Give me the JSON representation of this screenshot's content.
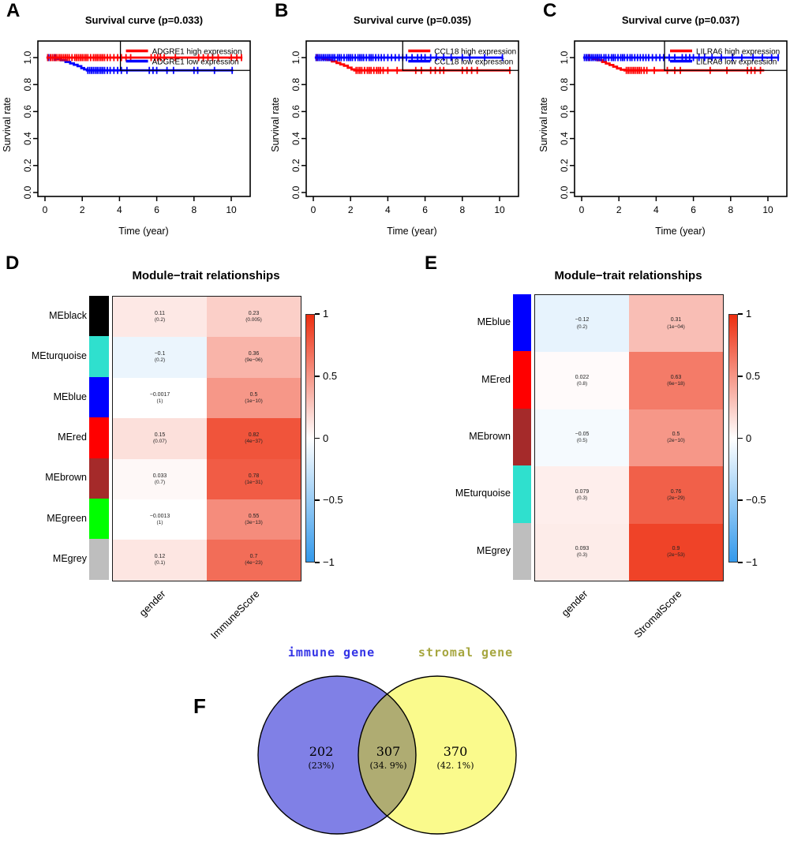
{
  "chart_data": {
    "survival_curves": [
      {
        "panel": "A",
        "type": "line",
        "title": "Survival curve (p=0.033)",
        "x_label": "Time (year)",
        "y_label": "Survival rate",
        "x_ticks": [
          0,
          2,
          4,
          6,
          8,
          10
        ],
        "y_tick_labels": [
          "0.0",
          "0.2",
          "0.4",
          "0.6",
          "0.8",
          "1.0"
        ],
        "xlim": [
          0,
          11
        ],
        "ylim": [
          0,
          1.05
        ],
        "legend_box_start_year": 4.05,
        "legend_box_bottom": 0.905,
        "legend": [
          {
            "label": "ADGRE1 high expression",
            "color": "#FF0000"
          },
          {
            "label": "ADGRE1 low expression",
            "color": "#0000FF"
          }
        ],
        "series": [
          {
            "name": "ADGRE1 low expression",
            "color": "#0000FF",
            "steps": [
              [
                0.08,
                1
              ],
              [
                0.6,
                0.99
              ],
              [
                0.85,
                0.98
              ],
              [
                1.1,
                0.968
              ],
              [
                1.35,
                0.957
              ],
              [
                1.55,
                0.947
              ],
              [
                1.75,
                0.936
              ],
              [
                1.95,
                0.922
              ],
              [
                2.1,
                0.912
              ],
              [
                2.25,
                0.905
              ],
              [
                10.1,
                0.905
              ]
            ],
            "censor_times": [
              0.15,
              0.2,
              0.3,
              0.4,
              0.5,
              0.55,
              2.3,
              2.4,
              2.5,
              2.6,
              2.7,
              2.8,
              2.9,
              3.0,
              3.1,
              3.2,
              3.35,
              3.5,
              3.7,
              3.9,
              4.1,
              4.4,
              5.6,
              5.8,
              6.0,
              6.55,
              6.9,
              8.0,
              8.2,
              9.1,
              10.05
            ]
          },
          {
            "name": "ADGRE1 high expression",
            "color": "#FF0000",
            "steps": [
              [
                0.08,
                1
              ],
              [
                10.6,
                1
              ]
            ],
            "censor_times": [
              0.15,
              0.3,
              0.4,
              0.5,
              0.6,
              0.7,
              0.8,
              0.9,
              1.0,
              1.1,
              1.2,
              1.3,
              1.45,
              1.6,
              1.7,
              1.8,
              1.9,
              2.0,
              2.1,
              2.2,
              2.3,
              2.45,
              2.6,
              2.7,
              2.8,
              2.9,
              3.0,
              3.1,
              3.2,
              3.35,
              3.5,
              3.7,
              3.9,
              4.1,
              4.35,
              4.6,
              5.7,
              5.9,
              6.05,
              6.2,
              6.4,
              7.0,
              8.25,
              8.5,
              8.75,
              9.0,
              9.3,
              10.0,
              10.3,
              10.55
            ]
          }
        ]
      },
      {
        "panel": "B",
        "type": "line",
        "title": "Survival curve (p=0.035)",
        "x_label": "Time (year)",
        "y_label": "Survival rate",
        "x_ticks": [
          0,
          2,
          4,
          6,
          8,
          10
        ],
        "y_tick_labels": [
          "0.0",
          "0.2",
          "0.4",
          "0.6",
          "0.8",
          "1.0"
        ],
        "xlim": [
          0,
          11
        ],
        "ylim": [
          0,
          1.05
        ],
        "legend_box_start_year": 4.8,
        "legend_box_bottom": 0.905,
        "legend": [
          {
            "label": "CCL18 high expression",
            "color": "#FF0000"
          },
          {
            "label": "CCL18 low expression",
            "color": "#0000FF"
          }
        ],
        "series": [
          {
            "name": "CCL18 high expression",
            "color": "#FF0000",
            "steps": [
              [
                0.08,
                1
              ],
              [
                0.5,
                0.99
              ],
              [
                0.75,
                0.982
              ],
              [
                1.0,
                0.972
              ],
              [
                1.25,
                0.96
              ],
              [
                1.45,
                0.95
              ],
              [
                1.65,
                0.94
              ],
              [
                1.85,
                0.925
              ],
              [
                2.05,
                0.912
              ],
              [
                2.2,
                0.905
              ],
              [
                10.6,
                0.905
              ]
            ],
            "censor_times": [
              0.2,
              0.35,
              2.3,
              2.4,
              2.5,
              2.6,
              2.75,
              2.9,
              3.0,
              3.1,
              3.25,
              3.4,
              3.5,
              3.6,
              3.75,
              4.0,
              4.5,
              5.5,
              5.8,
              6.3,
              6.55,
              6.8,
              7.0,
              8.0,
              8.25,
              8.5,
              8.8,
              10.55
            ]
          },
          {
            "name": "CCL18 low expression",
            "color": "#0000FF",
            "steps": [
              [
                0.08,
                1
              ],
              [
                10.2,
                1
              ]
            ],
            "censor_times": [
              0.15,
              0.25,
              0.35,
              0.45,
              0.55,
              0.65,
              0.75,
              0.85,
              0.95,
              1.05,
              1.15,
              1.3,
              1.4,
              1.5,
              1.65,
              1.8,
              1.9,
              2.0,
              2.1,
              2.25,
              2.4,
              2.5,
              2.6,
              2.7,
              2.85,
              3.0,
              3.1,
              3.2,
              3.35,
              3.5,
              3.65,
              3.8,
              4.0,
              4.2,
              4.4,
              4.6,
              4.8,
              5.0,
              5.3,
              5.6,
              5.8,
              6.0,
              6.3,
              6.6,
              7.0,
              7.4,
              8.0,
              8.4,
              9.2,
              10.15
            ]
          }
        ]
      },
      {
        "panel": "C",
        "type": "line",
        "title": "Survival curve (p=0.037)",
        "x_label": "Time (year)",
        "y_label": "Survival rate",
        "x_ticks": [
          0,
          2,
          4,
          6,
          8,
          10
        ],
        "y_tick_labels": [
          "0.0",
          "0.2",
          "0.4",
          "0.6",
          "0.8",
          "1.0"
        ],
        "xlim": [
          0,
          11
        ],
        "ylim": [
          0,
          1.05
        ],
        "legend_box_start_year": 4.45,
        "legend_box_bottom": 0.905,
        "legend": [
          {
            "label": "LILRA6 high expression",
            "color": "#FF0000"
          },
          {
            "label": "LILRA6 low expression",
            "color": "#0000FF"
          }
        ],
        "series": [
          {
            "name": "LILRA6 high expression",
            "color": "#FF0000",
            "steps": [
              [
                0.08,
                1
              ],
              [
                0.6,
                0.99
              ],
              [
                0.85,
                0.98
              ],
              [
                1.1,
                0.968
              ],
              [
                1.3,
                0.956
              ],
              [
                1.5,
                0.945
              ],
              [
                1.7,
                0.933
              ],
              [
                1.9,
                0.92
              ],
              [
                2.1,
                0.91
              ],
              [
                2.3,
                0.905
              ],
              [
                9.8,
                0.905
              ]
            ],
            "censor_times": [
              0.25,
              0.4,
              2.4,
              2.5,
              2.6,
              2.7,
              2.8,
              2.9,
              3.0,
              3.1,
              3.2,
              3.35,
              3.5,
              3.9,
              4.6,
              5.0,
              5.3,
              6.9,
              7.8,
              8.9,
              9.1,
              9.3,
              9.6
            ]
          },
          {
            "name": "LILRA6 low expression",
            "color": "#0000FF",
            "steps": [
              [
                0.08,
                1
              ],
              [
                10.6,
                1
              ]
            ],
            "censor_times": [
              0.15,
              0.25,
              0.35,
              0.45,
              0.55,
              0.65,
              0.75,
              0.85,
              0.95,
              1.05,
              1.2,
              1.3,
              1.45,
              1.6,
              1.7,
              1.8,
              1.95,
              2.1,
              2.2,
              2.3,
              2.45,
              2.6,
              2.7,
              2.85,
              3.0,
              3.15,
              3.3,
              3.45,
              3.6,
              3.8,
              4.0,
              4.2,
              4.4,
              4.7,
              5.0,
              5.4,
              5.6,
              5.8,
              6.0,
              6.3,
              6.6,
              7.0,
              7.5,
              8.1,
              8.6,
              9.2,
              9.7,
              10.2,
              10.55
            ]
          }
        ]
      }
    ],
    "heatmaps": [
      {
        "panel": "D",
        "type": "heatmap",
        "title": "Module−trait relationships",
        "columns": [
          "gender",
          "ImmuneScore"
        ],
        "colorbar_ticks": [
          "1",
          "0.5",
          "0",
          "−0.5",
          "−1"
        ],
        "colorbar_range": [
          1,
          -1
        ],
        "positive_color": "#ED2E10",
        "negative_color": "#3399EB",
        "rows": [
          {
            "module": "MEblack",
            "color": "#000000",
            "cells": [
              {
                "value": 0.11,
                "label": "0.11",
                "p": "(0.2)"
              },
              {
                "value": 0.23,
                "label": "0.23",
                "p": "(0.005)"
              }
            ]
          },
          {
            "module": "MEturquoise",
            "color": "#2FE0CE",
            "cells": [
              {
                "value": -0.1,
                "label": "−0.1",
                "p": "(0.2)"
              },
              {
                "value": 0.36,
                "label": "0.36",
                "p": "(9e−06)"
              }
            ]
          },
          {
            "module": "MEblue",
            "color": "#0000FF",
            "cells": [
              {
                "value": -0.0017,
                "label": "−0.0017",
                "p": "(1)"
              },
              {
                "value": 0.5,
                "label": "0.5",
                "p": "(1e−10)"
              }
            ]
          },
          {
            "module": "MEred",
            "color": "#FF0000",
            "cells": [
              {
                "value": 0.15,
                "label": "0.15",
                "p": "(0.07)"
              },
              {
                "value": 0.82,
                "label": "0.82",
                "p": "(4e−37)"
              }
            ]
          },
          {
            "module": "MEbrown",
            "color": "#A52A2A",
            "cells": [
              {
                "value": 0.033,
                "label": "0.033",
                "p": "(0.7)"
              },
              {
                "value": 0.78,
                "label": "0.78",
                "p": "(1e−31)"
              }
            ]
          },
          {
            "module": "MEgreen",
            "color": "#00FF00",
            "cells": [
              {
                "value": -0.0013,
                "label": "−0.0013",
                "p": "(1)"
              },
              {
                "value": 0.55,
                "label": "0.55",
                "p": "(3e−13)"
              }
            ]
          },
          {
            "module": "MEgrey",
            "color": "#BEBEBE",
            "cells": [
              {
                "value": 0.12,
                "label": "0.12",
                "p": "(0.1)"
              },
              {
                "value": 0.7,
                "label": "0.7",
                "p": "(4e−23)"
              }
            ]
          }
        ]
      },
      {
        "panel": "E",
        "type": "heatmap",
        "title": "Module−trait relationships",
        "columns": [
          "gender",
          "StromalScore"
        ],
        "colorbar_ticks": [
          "1",
          "0.5",
          "0",
          "−0.5",
          "−1"
        ],
        "colorbar_range": [
          1,
          -1
        ],
        "positive_color": "#ED2E10",
        "negative_color": "#3399EB",
        "rows": [
          {
            "module": "MEblue",
            "color": "#0000FF",
            "cells": [
              {
                "value": -0.12,
                "label": "−0.12",
                "p": "(0.2)"
              },
              {
                "value": 0.31,
                "label": "0.31",
                "p": "(1e−04)"
              }
            ]
          },
          {
            "module": "MEred",
            "color": "#FF0000",
            "cells": [
              {
                "value": 0.022,
                "label": "0.022",
                "p": "(0.8)"
              },
              {
                "value": 0.63,
                "label": "0.63",
                "p": "(6e−18)"
              }
            ]
          },
          {
            "module": "MEbrown",
            "color": "#A52A2A",
            "cells": [
              {
                "value": -0.05,
                "label": "−0.05",
                "p": "(0.5)"
              },
              {
                "value": 0.5,
                "label": "0.5",
                "p": "(2e−10)"
              }
            ]
          },
          {
            "module": "MEturquoise",
            "color": "#2FE0CE",
            "cells": [
              {
                "value": 0.079,
                "label": "0.079",
                "p": "(0.3)"
              },
              {
                "value": 0.76,
                "label": "0.76",
                "p": "(2e−29)"
              }
            ]
          },
          {
            "module": "MEgrey",
            "color": "#BEBEBE",
            "cells": [
              {
                "value": 0.093,
                "label": "0.093",
                "p": "(0.3)"
              },
              {
                "value": 0.9,
                "label": "0.9",
                "p": "(2e−53)"
              }
            ]
          }
        ]
      }
    ],
    "venn": {
      "panel": "F",
      "type": "venn",
      "sets": [
        {
          "label": "immune gene",
          "label_color": "#3333E6",
          "fill": "#8080E6",
          "count": 202,
          "count_label": "202",
          "pct_label": "(23%)"
        },
        {
          "label": "stromal gene",
          "label_color": "#A6A63F",
          "fill": "#FAFA8C",
          "count": 370,
          "count_label": "370",
          "pct_label": "(42. 1%)"
        }
      ],
      "overlap": {
        "fill": "#AFAC72",
        "count": 307,
        "count_label": "307",
        "pct_label": "(34. 9%)"
      }
    }
  }
}
